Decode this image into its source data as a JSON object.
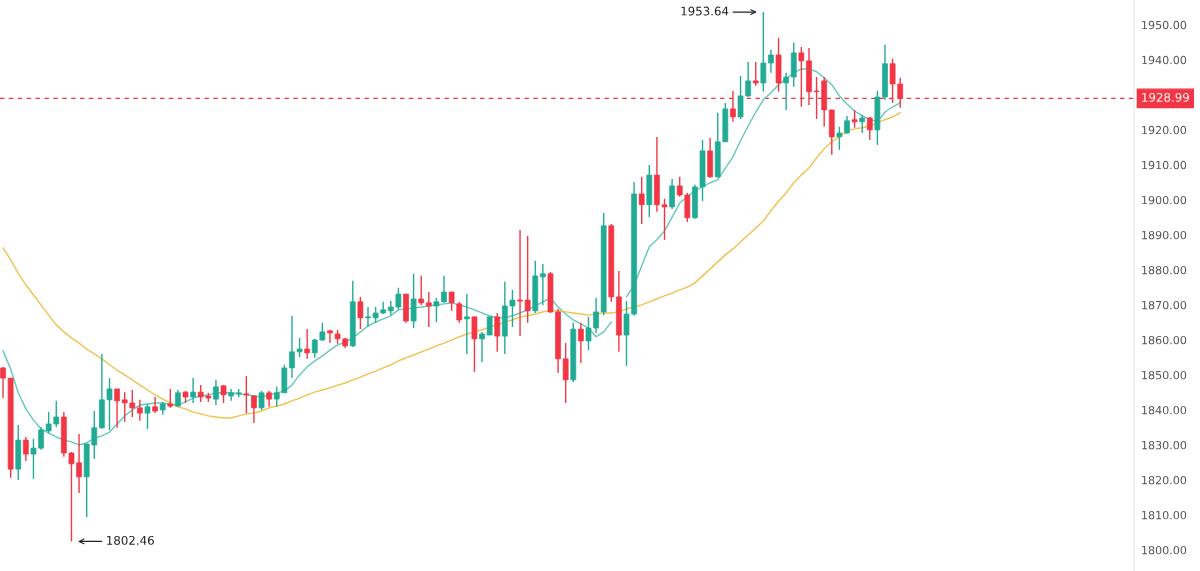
{
  "chart_data": {
    "type": "candlestick",
    "categories": [
      null,
      null,
      null,
      null,
      null,
      null,
      null,
      null,
      null,
      null,
      null,
      null,
      null,
      null,
      null,
      null,
      null,
      null,
      null,
      null,
      null,
      null,
      null,
      null,
      null,
      null,
      null,
      null,
      null,
      null,
      null,
      null,
      null,
      null,
      null,
      null,
      null,
      null,
      null,
      null,
      null,
      null,
      null,
      null,
      null,
      null,
      null,
      null,
      null,
      null,
      null,
      null,
      null,
      null,
      null,
      null,
      null,
      null,
      null,
      null,
      null,
      null,
      null,
      null,
      null,
      null,
      null,
      null,
      null,
      null,
      null,
      null,
      null,
      null,
      null,
      null,
      null,
      null,
      null,
      null,
      null,
      null,
      null,
      null,
      null,
      null,
      null,
      null,
      null,
      null,
      null,
      null,
      null,
      null,
      null,
      null,
      null,
      null,
      null,
      null,
      null,
      null,
      null,
      null,
      null,
      null,
      null,
      null,
      null,
      null,
      null,
      null,
      null,
      null,
      null,
      null,
      null,
      null,
      null
    ],
    "ohlc": [
      [
        1852.0,
        1852.3,
        1843.4,
        1849.1
      ],
      [
        1849.1,
        1849.1,
        1820.6,
        1823.1
      ],
      [
        1823.1,
        1835.7,
        1820.0,
        1831.4
      ],
      [
        1831.4,
        1832.3,
        1825.4,
        1827.4
      ],
      [
        1827.4,
        1831.7,
        1820.3,
        1829.1
      ],
      [
        1829.1,
        1835.1,
        1828.6,
        1834.3
      ],
      [
        1834.0,
        1839.4,
        1833.4,
        1836.0
      ],
      [
        1836.0,
        1842.6,
        1835.1,
        1838.0
      ],
      [
        1838.0,
        1839.4,
        1826.6,
        1827.7
      ],
      [
        1827.7,
        1828.0,
        1802.46,
        1824.6
      ],
      [
        1824.9,
        1833.1,
        1816.3,
        1820.9
      ],
      [
        1820.9,
        1830.3,
        1809.4,
        1830.3
      ],
      [
        1830.0,
        1839.7,
        1826.0,
        1834.9
      ],
      [
        1834.9,
        1856.0,
        1834.6,
        1842.9
      ],
      [
        1842.9,
        1849.1,
        1834.3,
        1846.0
      ],
      [
        1846.0,
        1846.0,
        1834.9,
        1842.6
      ],
      [
        1842.9,
        1845.1,
        1836.6,
        1842.0
      ],
      [
        1842.0,
        1845.7,
        1838.0,
        1840.6
      ],
      [
        1840.6,
        1842.9,
        1836.9,
        1839.1
      ],
      [
        1839.1,
        1841.7,
        1834.6,
        1840.9
      ],
      [
        1840.9,
        1843.7,
        1839.1,
        1839.7
      ],
      [
        1840.0,
        1842.3,
        1838.6,
        1841.7
      ],
      [
        1841.7,
        1846.0,
        1840.6,
        1841.1
      ],
      [
        1841.1,
        1845.7,
        1840.9,
        1844.9
      ],
      [
        1845.1,
        1845.4,
        1842.0,
        1843.7
      ],
      [
        1843.7,
        1849.1,
        1842.0,
        1845.1
      ],
      [
        1845.1,
        1847.1,
        1842.3,
        1843.7
      ],
      [
        1844.0,
        1844.9,
        1842.3,
        1843.4
      ],
      [
        1843.1,
        1848.6,
        1841.4,
        1846.6
      ],
      [
        1846.9,
        1847.1,
        1842.0,
        1844.3
      ],
      [
        1844.0,
        1846.0,
        1842.6,
        1844.9
      ],
      [
        1844.6,
        1846.0,
        1843.7,
        1844.9
      ],
      [
        1844.6,
        1849.7,
        1839.1,
        1844.3
      ],
      [
        1844.0,
        1844.3,
        1836.3,
        1840.6
      ],
      [
        1840.6,
        1845.4,
        1840.0,
        1844.9
      ],
      [
        1844.9,
        1845.4,
        1840.9,
        1843.1
      ],
      [
        1843.1,
        1846.6,
        1840.9,
        1844.9
      ],
      [
        1844.9,
        1852.9,
        1844.9,
        1852.0
      ],
      [
        1852.0,
        1866.9,
        1849.1,
        1856.6
      ],
      [
        1856.6,
        1860.6,
        1855.1,
        1857.4
      ],
      [
        1857.4,
        1863.1,
        1854.6,
        1856.3
      ],
      [
        1856.3,
        1860.3,
        1854.9,
        1860.0
      ],
      [
        1860.0,
        1864.9,
        1859.7,
        1862.3
      ],
      [
        1862.6,
        1862.9,
        1859.1,
        1862.0
      ],
      [
        1861.7,
        1862.9,
        1858.9,
        1860.3
      ],
      [
        1860.3,
        1860.6,
        1857.7,
        1858.3
      ],
      [
        1858.3,
        1876.9,
        1858.0,
        1870.9
      ],
      [
        1870.9,
        1872.3,
        1863.1,
        1866.3
      ],
      [
        1866.3,
        1869.4,
        1863.7,
        1866.6
      ],
      [
        1866.3,
        1869.4,
        1864.9,
        1867.7
      ],
      [
        1867.7,
        1870.9,
        1867.4,
        1868.6
      ],
      [
        1868.3,
        1871.1,
        1867.1,
        1869.4
      ],
      [
        1869.4,
        1874.9,
        1868.6,
        1873.1
      ],
      [
        1873.1,
        1873.1,
        1864.9,
        1865.4
      ],
      [
        1865.4,
        1878.9,
        1863.4,
        1871.7
      ],
      [
        1871.7,
        1878.3,
        1870.0,
        1870.6
      ],
      [
        1870.6,
        1873.7,
        1863.7,
        1869.7
      ],
      [
        1869.7,
        1872.0,
        1865.1,
        1870.9
      ],
      [
        1870.9,
        1878.3,
        1870.6,
        1873.7
      ],
      [
        1873.7,
        1873.7,
        1868.3,
        1870.6
      ],
      [
        1870.3,
        1870.9,
        1864.9,
        1865.7
      ],
      [
        1866.0,
        1873.1,
        1856.0,
        1866.6
      ],
      [
        1866.6,
        1866.6,
        1850.9,
        1860.3
      ],
      [
        1860.3,
        1862.3,
        1853.7,
        1861.7
      ],
      [
        1861.4,
        1866.6,
        1861.4,
        1866.6
      ],
      [
        1866.6,
        1867.7,
        1856.6,
        1861.1
      ],
      [
        1861.1,
        1876.6,
        1856.0,
        1869.7
      ],
      [
        1869.7,
        1874.3,
        1863.7,
        1871.4
      ],
      [
        1871.4,
        1891.4,
        1861.1,
        1871.1
      ],
      [
        1871.4,
        1889.7,
        1864.9,
        1868.3
      ],
      [
        1868.3,
        1882.6,
        1867.7,
        1878.3
      ],
      [
        1878.0,
        1881.7,
        1870.0,
        1878.9
      ],
      [
        1878.9,
        1879.4,
        1867.7,
        1868.0
      ],
      [
        1868.0,
        1868.9,
        1850.6,
        1854.6
      ],
      [
        1854.6,
        1859.1,
        1842.0,
        1848.6
      ],
      [
        1848.6,
        1864.9,
        1848.0,
        1863.1
      ],
      [
        1863.1,
        1864.9,
        1853.4,
        1859.7
      ],
      [
        1859.7,
        1866.6,
        1857.1,
        1863.4
      ],
      [
        1863.4,
        1872.0,
        1862.0,
        1868.0
      ],
      [
        1868.0,
        1896.3,
        1867.1,
        1892.6
      ],
      [
        1892.6,
        1893.1,
        1870.9,
        1872.3
      ],
      [
        1872.3,
        1879.7,
        1856.6,
        1861.4
      ],
      [
        1861.4,
        1871.1,
        1852.6,
        1867.4
      ],
      [
        1867.4,
        1905.1,
        1866.9,
        1901.7
      ],
      [
        1901.7,
        1906.6,
        1893.1,
        1898.6
      ],
      [
        1898.6,
        1910.0,
        1895.1,
        1907.1
      ],
      [
        1907.1,
        1918.0,
        1896.6,
        1898.6
      ],
      [
        1898.6,
        1900.3,
        1888.6,
        1898.0
      ],
      [
        1898.0,
        1906.0,
        1897.4,
        1904.0
      ],
      [
        1904.0,
        1906.6,
        1900.9,
        1901.4
      ],
      [
        1901.4,
        1902.0,
        1893.7,
        1894.9
      ],
      [
        1894.9,
        1904.3,
        1894.6,
        1903.7
      ],
      [
        1903.7,
        1917.1,
        1899.7,
        1914.0
      ],
      [
        1914.0,
        1917.7,
        1906.3,
        1906.6
      ],
      [
        1906.6,
        1924.9,
        1906.3,
        1916.6
      ],
      [
        1916.6,
        1927.7,
        1916.6,
        1926.0
      ],
      [
        1926.0,
        1931.1,
        1922.3,
        1923.7
      ],
      [
        1923.7,
        1935.4,
        1923.1,
        1929.7
      ],
      [
        1929.7,
        1939.4,
        1929.4,
        1934.0
      ],
      [
        1934.0,
        1939.4,
        1932.6,
        1933.4
      ],
      [
        1933.4,
        1953.64,
        1930.9,
        1939.1
      ],
      [
        1939.1,
        1942.9,
        1936.3,
        1941.4
      ],
      [
        1941.4,
        1946.3,
        1930.9,
        1933.4
      ],
      [
        1933.4,
        1936.3,
        1925.7,
        1935.1
      ],
      [
        1935.1,
        1944.9,
        1932.3,
        1942.0
      ],
      [
        1942.0,
        1943.7,
        1926.6,
        1939.7
      ],
      [
        1939.7,
        1943.4,
        1927.1,
        1930.9
      ],
      [
        1931.1,
        1935.1,
        1923.1,
        1930.9
      ],
      [
        1934.0,
        1935.1,
        1920.9,
        1925.7
      ],
      [
        1925.7,
        1925.7,
        1912.9,
        1918.0
      ],
      [
        1918.0,
        1920.9,
        1914.3,
        1919.1
      ],
      [
        1919.1,
        1924.0,
        1918.9,
        1922.6
      ],
      [
        1922.9,
        1925.7,
        1920.6,
        1922.3
      ],
      [
        1922.3,
        1924.3,
        1919.1,
        1923.4
      ],
      [
        1923.4,
        1923.7,
        1917.1,
        1920.0
      ],
      [
        1920.0,
        1931.1,
        1915.7,
        1929.4
      ],
      [
        1929.4,
        1944.3,
        1928.6,
        1938.9
      ],
      [
        1938.9,
        1940.3,
        1927.7,
        1933.1
      ],
      [
        1933.1,
        1934.9,
        1926.3,
        1928.99
      ]
    ],
    "colors": [
      "#f23645",
      "#f23645",
      "#22ab94",
      "#f23645",
      "#22ab94",
      "#22ab94",
      "#22ab94",
      "#22ab94",
      "#f23645",
      "#f23645",
      "#f23645",
      "#22ab94",
      "#22ab94",
      "#22ab94",
      "#22ab94",
      "#f23645",
      "#f23645",
      "#f23645",
      "#f23645",
      "#22ab94",
      "#f23645",
      "#22ab94",
      "#f23645",
      "#22ab94",
      "#f23645",
      "#22ab94",
      "#f23645",
      "#f23645",
      "#22ab94",
      "#f23645",
      "#22ab94",
      "#22ab94",
      "#f23645",
      "#f23645",
      "#22ab94",
      "#f23645",
      "#22ab94",
      "#22ab94",
      "#22ab94",
      "#22ab94",
      "#f23645",
      "#22ab94",
      "#22ab94",
      "#f23645",
      "#f23645",
      "#f23645",
      "#22ab94",
      "#f23645",
      "#22ab94",
      "#22ab94",
      "#22ab94",
      "#22ab94",
      "#22ab94",
      "#f23645",
      "#22ab94",
      "#f23645",
      "#f23645",
      "#22ab94",
      "#22ab94",
      "#f23645",
      "#f23645",
      "#22ab94",
      "#f23645",
      "#22ab94",
      "#22ab94",
      "#f23645",
      "#22ab94",
      "#22ab94",
      "#f23645",
      "#f23645",
      "#22ab94",
      "#22ab94",
      "#f23645",
      "#f23645",
      "#f23645",
      "#22ab94",
      "#f23645",
      "#22ab94",
      "#22ab94",
      "#22ab94",
      "#f23645",
      "#f23645",
      "#22ab94",
      "#22ab94",
      "#f23645",
      "#22ab94",
      "#f23645",
      "#f23645",
      "#22ab94",
      "#f23645",
      "#f23645",
      "#22ab94",
      "#22ab94",
      "#f23645",
      "#22ab94",
      "#22ab94",
      "#f23645",
      "#22ab94",
      "#22ab94",
      "#f23645",
      "#22ab94",
      "#22ab94",
      "#f23645",
      "#22ab94",
      "#22ab94",
      "#f23645",
      "#f23645",
      "#f23645",
      "#f23645",
      "#f23645",
      "#22ab94",
      "#22ab94",
      "#f23645",
      "#22ab94",
      "#f23645",
      "#22ab94",
      "#22ab94",
      "#f23645",
      "#f23645"
    ],
    "series": [
      {
        "type": "line",
        "color": "#62c9bb",
        "values": [
          1856.9,
          1851.7,
          1844.9,
          1840.3,
          1837.1,
          1834.6,
          1833.4,
          1832.3,
          1831.4,
          1830.9,
          1830.0,
          1830.6,
          1832.0,
          1832.6,
          1833.7,
          1836.0,
          1838.3,
          1840.0,
          1841.4,
          1841.7,
          1842.0,
          1842.0,
          1841.7,
          1841.4,
          1842.3,
          1843.4,
          1844.0,
          1844.3,
          1844.9,
          1844.9,
          1844.9,
          1844.6,
          1844.3,
          1844.0,
          1843.7,
          1844.3,
          1844.9,
          1845.4,
          1847.1,
          1850.0,
          1852.3,
          1854.0,
          1855.4,
          1857.1,
          1858.6,
          1859.4,
          1860.6,
          1862.3,
          1864.0,
          1865.1,
          1866.0,
          1866.9,
          1868.6,
          1868.9,
          1869.1,
          1869.4,
          1869.7,
          1870.0,
          1870.3,
          1870.6,
          1870.0,
          1869.4,
          1868.6,
          1867.7,
          1866.9,
          1866.3,
          1866.3,
          1866.9,
          1867.7,
          1868.6,
          1869.7,
          1870.9,
          1872.0,
          1869.4,
          1867.4,
          1865.7,
          1864.6,
          1863.4,
          1860.9,
          1862.3,
          1865.1,
          null,
          1872.3,
          1875.7,
          1881.1,
          1886.6,
          1888.6,
          1891.1,
          1895.1,
          1899.1,
          1900.9,
          1902.6,
          1903.7,
          1904.9,
          1905.7,
          1909.1,
          1912.3,
          1916.9,
          1921.1,
          1925.1,
          1928.6,
          1930.6,
          1932.9,
          1934.6,
          1936.3,
          1937.4,
          1937.4,
          1936.6,
          1934.9,
          1932.9,
          1929.7,
          1927.4,
          1925.4,
          1924.0,
          1923.1,
          1922.3,
          1925.1,
          1926.6,
          1927.7
        ]
      },
      {
        "type": "line",
        "color": "#f2c14e",
        "values": [
          1886.3,
          1882.9,
          1879.1,
          1875.7,
          1872.9,
          1870.0,
          1867.1,
          1864.3,
          1862.3,
          1860.6,
          1859.1,
          1857.4,
          1856.0,
          1854.6,
          1852.9,
          1851.4,
          1850.0,
          1848.6,
          1847.1,
          1845.7,
          1844.3,
          1843.1,
          1842.0,
          1840.9,
          1840.3,
          1839.4,
          1838.9,
          1838.3,
          1838.0,
          1837.7,
          1837.7,
          1838.3,
          1838.9,
          1839.1,
          1839.7,
          1840.6,
          1841.1,
          1841.7,
          1842.6,
          1843.4,
          1844.3,
          1845.1,
          1845.7,
          1846.3,
          1847.1,
          1847.7,
          1848.6,
          1849.4,
          1850.3,
          1851.1,
          1852.0,
          1852.9,
          1854.0,
          1854.9,
          1855.7,
          1856.6,
          1857.4,
          1858.3,
          1859.1,
          1860.0,
          1860.9,
          1861.7,
          1862.3,
          1862.9,
          1863.7,
          1864.3,
          1865.1,
          1865.7,
          1866.6,
          1866.9,
          1867.4,
          1868.0,
          1868.3,
          1868.3,
          1868.0,
          1867.7,
          1867.4,
          1867.1,
          1867.4,
          1867.7,
          1867.7,
          1868.0,
          1868.9,
          1869.4,
          1870.0,
          1870.9,
          1871.7,
          1872.6,
          1873.4,
          1874.3,
          1875.1,
          1876.3,
          1878.3,
          1880.3,
          1882.3,
          1884.3,
          1886.0,
          1888.0,
          1890.0,
          1892.0,
          1894.0,
          1896.9,
          1899.7,
          1902.0,
          1904.9,
          1907.1,
          1909.1,
          1912.0,
          1914.6,
          1916.6,
          1918.0,
          1919.7,
          1920.3,
          1920.6,
          1921.1,
          1922.0,
          1922.9,
          1923.7,
          1924.9
        ]
      }
    ],
    "ylim": [
      1794,
      1957.1
    ],
    "yticks": [
      {
        "value": 1800,
        "label": "1800.00"
      },
      {
        "value": 1810,
        "label": "1810.00"
      },
      {
        "value": 1820,
        "label": "1820.00"
      },
      {
        "value": 1830,
        "label": "1830.00"
      },
      {
        "value": 1840,
        "label": "1840.00"
      },
      {
        "value": 1850,
        "label": "1850.00"
      },
      {
        "value": 1860,
        "label": "1860.00"
      },
      {
        "value": 1870,
        "label": "1870.00"
      },
      {
        "value": 1880,
        "label": "1880.00"
      },
      {
        "value": 1890,
        "label": "1890.00"
      },
      {
        "value": 1900,
        "label": "1900.00"
      },
      {
        "value": 1910,
        "label": "1910.00"
      },
      {
        "value": 1920,
        "label": "1920.00"
      },
      {
        "value": 1940,
        "label": "1940.00"
      },
      {
        "value": 1950,
        "label": "1950.00"
      }
    ],
    "tick_labels": "y",
    "ref_lines": [
      {
        "axis": "y",
        "value": 1928.99,
        "label": "1928.99",
        "color": "#f23645",
        "line_style": "dashed"
      }
    ],
    "annotations": [
      "1953.64",
      "1802.46"
    ]
  }
}
